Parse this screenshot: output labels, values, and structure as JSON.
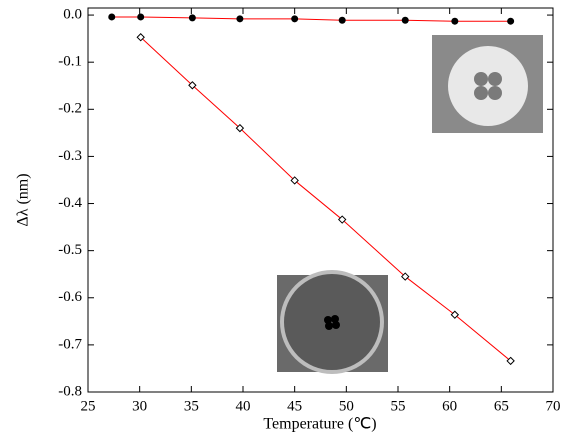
{
  "chart_data": {
    "type": "scatter",
    "x_label": "Temperature (℃)",
    "y_label": "Δλ (nm)",
    "xlim": [
      25,
      70
    ],
    "xticks": [
      25,
      30,
      35,
      40,
      45,
      50,
      55,
      60,
      65,
      70
    ],
    "ylim": [
      -0.8,
      0.015
    ],
    "yticks": [
      {
        "value": 0,
        "label": "0.0"
      },
      -0.1,
      -0.2,
      -0.3,
      -0.4,
      -0.5,
      -0.6,
      -0.7,
      -0.8
    ],
    "line_color": "#ff0000",
    "series": [
      {
        "marker": "circle",
        "color": "#000000",
        "x": [
          27.3,
          30.1,
          35.1,
          39.7,
          45.0,
          49.6,
          55.7,
          60.5,
          65.9
        ],
        "values": [
          -0.004,
          -0.004,
          -0.006,
          -0.008,
          -0.008,
          -0.011,
          -0.011,
          -0.013,
          -0.013
        ]
      },
      {
        "marker": "diamond",
        "color": "#000000",
        "x": [
          30.1,
          35.1,
          39.7,
          45.0,
          49.6,
          55.7,
          60.5,
          65.9
        ],
        "values": [
          -0.047,
          -0.149,
          -0.24,
          -0.351,
          -0.434,
          -0.555,
          -0.636,
          -0.734
        ]
      }
    ]
  }
}
